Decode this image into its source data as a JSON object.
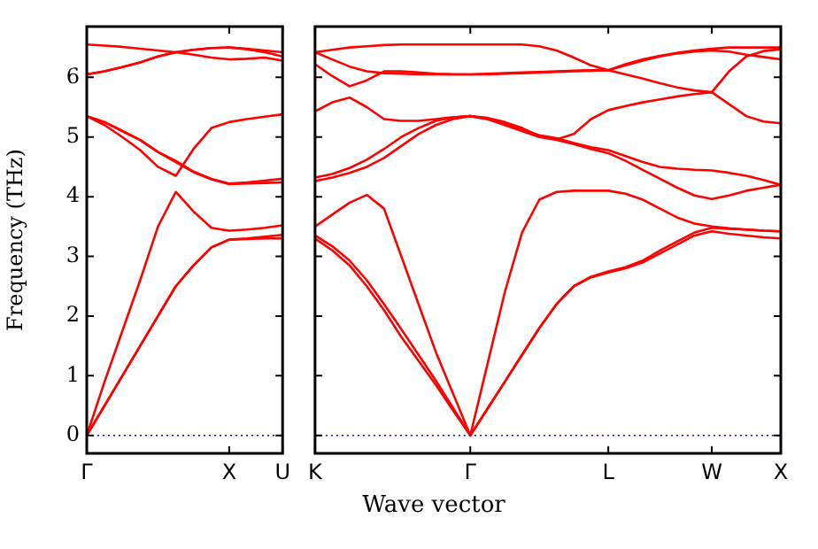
{
  "chart_data": [
    {
      "type": "line",
      "ylabel": "Frequency (THz)",
      "categories": [
        "Γ",
        null,
        null,
        null,
        null,
        null,
        null,
        null,
        "X",
        null,
        null,
        "U"
      ],
      "ylim": [
        -0.3,
        6.85
      ],
      "yticks": [
        0,
        1,
        2,
        3,
        4,
        5,
        6
      ],
      "marker": "none",
      "ref_lines": [
        {
          "axis": "y",
          "value": 0,
          "color": "#0000ff",
          "line_style": "dotted"
        }
      ],
      "series": [
        {
          "color": "#ff0000",
          "values": [
            0,
            0.5,
            1.0,
            1.5,
            2.0,
            2.5,
            2.85,
            3.15,
            3.28,
            3.29,
            3.3,
            3.3
          ]
        },
        {
          "color": "#ff0000",
          "values": [
            0,
            0.5,
            1.0,
            1.5,
            2.0,
            2.5,
            2.85,
            3.15,
            3.28,
            3.3,
            3.33,
            3.36
          ]
        },
        {
          "color": "#ff0000",
          "values": [
            0,
            0.9,
            1.75,
            2.6,
            3.5,
            4.08,
            3.75,
            3.48,
            3.43,
            3.45,
            3.48,
            3.52
          ]
        },
        {
          "color": "#ff0000",
          "values": [
            5.35,
            5.2,
            5.0,
            4.78,
            4.5,
            4.35,
            4.8,
            5.15,
            5.25,
            5.3,
            5.34,
            5.38
          ]
        },
        {
          "color": "#ff0000",
          "values": [
            5.35,
            5.25,
            5.1,
            4.95,
            4.75,
            4.6,
            4.42,
            4.3,
            4.22,
            4.24,
            4.27,
            4.3
          ]
        },
        {
          "color": "#ff0000",
          "values": [
            5.35,
            5.25,
            5.1,
            4.95,
            4.75,
            4.58,
            4.41,
            4.29,
            4.21,
            4.22,
            4.23,
            4.24
          ]
        },
        {
          "color": "#ff0000",
          "values": [
            6.05,
            6.1,
            6.17,
            6.25,
            6.35,
            6.42,
            6.46,
            6.49,
            6.5,
            6.47,
            6.42,
            6.35
          ]
        },
        {
          "color": "#ff0000",
          "values": [
            6.05,
            6.1,
            6.17,
            6.25,
            6.35,
            6.42,
            6.46,
            6.49,
            6.5,
            6.48,
            6.45,
            6.42
          ]
        },
        {
          "color": "#ff0000",
          "values": [
            6.55,
            6.53,
            6.51,
            6.48,
            6.45,
            6.42,
            6.38,
            6.33,
            6.3,
            6.31,
            6.33,
            6.28
          ]
        }
      ]
    },
    {
      "type": "line",
      "xlabel": "Wave vector",
      "categories": [
        "K",
        null,
        null,
        null,
        null,
        null,
        null,
        null,
        null,
        "Γ",
        null,
        null,
        null,
        null,
        null,
        null,
        null,
        "L",
        null,
        null,
        null,
        null,
        null,
        "W",
        null,
        null,
        null,
        "X"
      ],
      "ylim": [
        -0.3,
        6.85
      ],
      "yticks": [
        0,
        1,
        2,
        3,
        4,
        5,
        6
      ],
      "tick_labels": "x",
      "marker": "none",
      "ref_lines": [
        {
          "axis": "y",
          "value": 0,
          "color": "#0000ff",
          "line_style": "dotted"
        }
      ],
      "series": [
        {
          "color": "#ff0000",
          "values": [
            3.3,
            3.1,
            2.85,
            2.5,
            2.1,
            1.65,
            1.25,
            0.85,
            0.42,
            0,
            0.45,
            0.9,
            1.35,
            1.8,
            2.2,
            2.5,
            2.65,
            2.73,
            2.8,
            2.9,
            3.05,
            3.2,
            3.35,
            3.42,
            3.38,
            3.35,
            3.32,
            3.3
          ]
        },
        {
          "color": "#ff0000",
          "values": [
            3.35,
            3.17,
            2.93,
            2.6,
            2.2,
            1.78,
            1.35,
            0.92,
            0.46,
            0,
            0.45,
            0.9,
            1.35,
            1.8,
            2.2,
            2.5,
            2.66,
            2.75,
            2.82,
            2.93,
            3.1,
            3.25,
            3.4,
            3.48,
            3.46,
            3.45,
            3.43,
            3.42
          ]
        },
        {
          "color": "#ff0000",
          "values": [
            3.5,
            3.7,
            3.9,
            4.03,
            3.8,
            3.0,
            2.2,
            1.4,
            0.7,
            0,
            1.2,
            2.4,
            3.4,
            3.95,
            4.08,
            4.1,
            4.1,
            4.1,
            4.05,
            3.95,
            3.8,
            3.65,
            3.55,
            3.5,
            3.47,
            3.45,
            3.43,
            3.42
          ]
        },
        {
          "color": "#ff0000",
          "values": [
            4.26,
            4.32,
            4.4,
            4.5,
            4.65,
            4.85,
            5.05,
            5.2,
            5.3,
            5.35,
            5.3,
            5.2,
            5.1,
            5.0,
            4.95,
            4.88,
            4.8,
            4.73,
            4.6,
            4.45,
            4.3,
            4.15,
            4.02,
            3.96,
            4.02,
            4.1,
            4.15,
            4.2
          ]
        },
        {
          "color": "#ff0000",
          "values": [
            4.32,
            4.38,
            4.48,
            4.62,
            4.8,
            5.0,
            5.15,
            5.27,
            5.33,
            5.35,
            5.3,
            5.22,
            5.12,
            5.03,
            4.98,
            4.9,
            4.83,
            4.78,
            4.68,
            4.58,
            4.5,
            4.47,
            4.45,
            4.44,
            4.4,
            4.35,
            4.28,
            4.2
          ]
        },
        {
          "color": "#ff0000",
          "values": [
            5.43,
            5.58,
            5.66,
            5.5,
            5.3,
            5.27,
            5.27,
            5.3,
            5.33,
            5.35,
            5.32,
            5.25,
            5.15,
            5.02,
            4.96,
            5.05,
            5.3,
            5.45,
            5.52,
            5.58,
            5.63,
            5.68,
            5.72,
            5.75,
            5.55,
            5.35,
            5.26,
            5.23
          ]
        },
        {
          "color": "#ff0000",
          "values": [
            6.22,
            6.02,
            5.85,
            5.95,
            6.1,
            6.1,
            6.08,
            6.06,
            6.05,
            6.05,
            6.05,
            6.06,
            6.07,
            6.08,
            6.09,
            6.1,
            6.11,
            6.12,
            6.05,
            5.98,
            5.9,
            5.83,
            5.78,
            5.75,
            6.1,
            6.35,
            6.44,
            6.47
          ]
        },
        {
          "color": "#ff0000",
          "values": [
            6.42,
            6.3,
            6.18,
            6.1,
            6.07,
            6.06,
            6.05,
            6.05,
            6.05,
            6.05,
            6.06,
            6.07,
            6.08,
            6.09,
            6.1,
            6.11,
            6.12,
            6.12,
            6.2,
            6.28,
            6.35,
            6.4,
            6.43,
            6.45,
            6.43,
            6.38,
            6.34,
            6.3
          ]
        },
        {
          "color": "#ff0000",
          "values": [
            6.42,
            6.46,
            6.5,
            6.52,
            6.54,
            6.55,
            6.55,
            6.55,
            6.55,
            6.55,
            6.55,
            6.55,
            6.55,
            6.52,
            6.45,
            6.33,
            6.2,
            6.12,
            6.22,
            6.3,
            6.36,
            6.41,
            6.45,
            6.48,
            6.5,
            6.5,
            6.5,
            6.5
          ]
        }
      ]
    }
  ]
}
